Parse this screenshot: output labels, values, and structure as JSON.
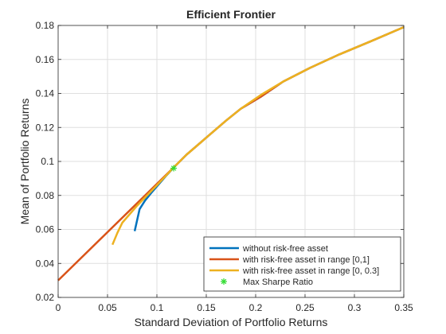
{
  "chart_data": {
    "type": "line",
    "title": "Efficient  Frontier",
    "xlabel": "Standard Deviation of Portfolio Returns",
    "ylabel": "Mean of Portfolio Returns",
    "xlim": [
      0,
      0.35
    ],
    "ylim": [
      0.02,
      0.18
    ],
    "xticks": [
      "0",
      "0.05",
      "0.1",
      "0.15",
      "0.2",
      "0.25",
      "0.3",
      "0.35"
    ],
    "yticks": [
      "0.02",
      "0.04",
      "0.06",
      "0.08",
      "0.1",
      "0.12",
      "0.14",
      "0.16",
      "0.18"
    ],
    "grid": true,
    "legend_position": "bottom-right",
    "series": [
      {
        "name": "without risk-free asset",
        "color": "#0072BD",
        "x": [
          0.0775,
          0.0825,
          0.088,
          0.095,
          0.1025,
          0.11,
          0.118,
          0.13,
          0.15,
          0.17,
          0.185,
          0.205,
          0.228,
          0.255,
          0.285,
          0.318,
          0.35
        ],
        "y": [
          0.059,
          0.072,
          0.077,
          0.082,
          0.087,
          0.092,
          0.097,
          0.104,
          0.114,
          0.124,
          0.131,
          0.138,
          0.147,
          0.155,
          0.163,
          0.171,
          0.179
        ]
      },
      {
        "name": "with risk-free asset in range [0,1]",
        "color": "#D95319",
        "x": [
          0,
          0.118,
          0.13,
          0.15,
          0.17,
          0.185,
          0.205,
          0.228,
          0.255,
          0.285,
          0.318,
          0.35
        ],
        "y": [
          0.03,
          0.097,
          0.104,
          0.114,
          0.124,
          0.131,
          0.138,
          0.147,
          0.155,
          0.163,
          0.171,
          0.179
        ]
      },
      {
        "name": "with risk-free asset in range [0, 0.3]",
        "color": "#EDB120",
        "x": [
          0.055,
          0.06,
          0.065,
          0.08,
          0.1,
          0.118,
          0.13,
          0.15,
          0.17,
          0.185,
          0.205,
          0.228,
          0.255,
          0.285,
          0.318,
          0.35
        ],
        "y": [
          0.051,
          0.058,
          0.064,
          0.074,
          0.086,
          0.097,
          0.104,
          0.114,
          0.124,
          0.131,
          0.139,
          0.147,
          0.155,
          0.163,
          0.171,
          0.179
        ]
      }
    ],
    "marker": {
      "name": "Max Sharpe Ratio",
      "color": "#33dd33",
      "x": 0.117,
      "y": 0.096
    }
  }
}
